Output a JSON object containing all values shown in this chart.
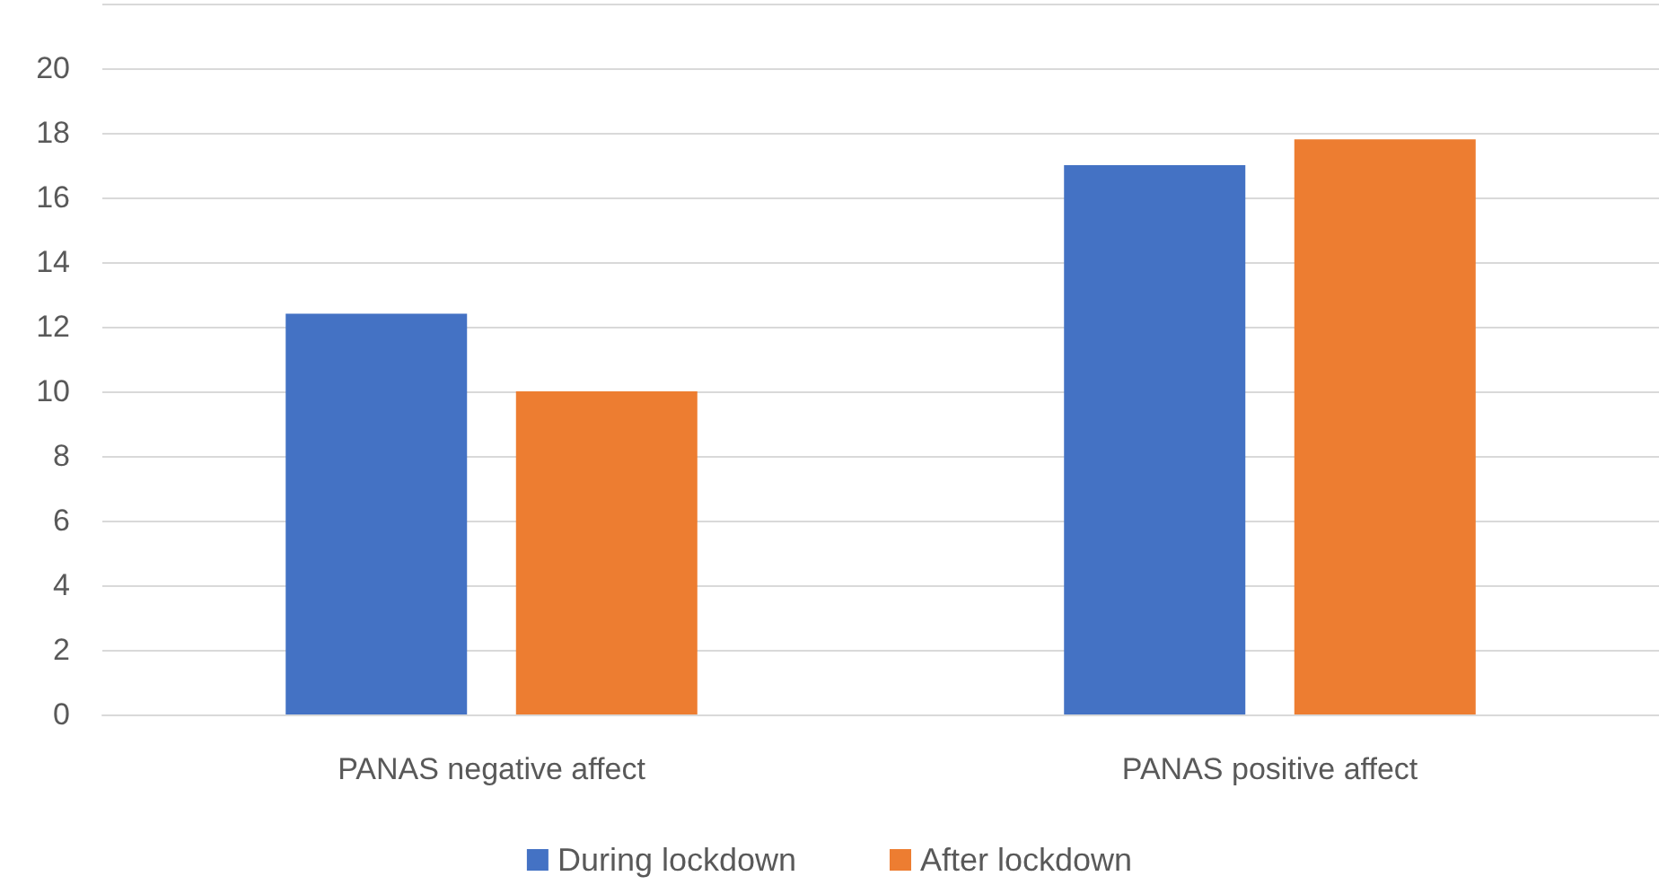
{
  "chart_data": {
    "type": "bar",
    "categories": [
      "PANAS negative affect",
      "PANAS positive affect"
    ],
    "series": [
      {
        "name": "During lockdown",
        "color": "#4472c4",
        "values": [
          12.4,
          17.0
        ]
      },
      {
        "name": "After lockdown",
        "color": "#ed7d31",
        "values": [
          10.0,
          17.8
        ]
      }
    ],
    "ylim": [
      0,
      22
    ],
    "yticks": [
      0,
      2,
      4,
      6,
      8,
      10,
      12,
      14,
      16,
      18,
      20,
      {
        "value": 22,
        "label": null
      }
    ],
    "grid": "y",
    "legend": "bottom"
  }
}
